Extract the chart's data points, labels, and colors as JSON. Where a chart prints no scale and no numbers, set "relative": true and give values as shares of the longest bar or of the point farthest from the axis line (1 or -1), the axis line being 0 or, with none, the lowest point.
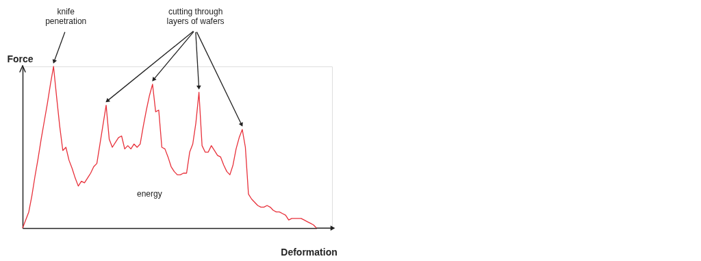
{
  "chart_data": {
    "type": "line",
    "relative": true,
    "xlabel": "Deformation",
    "ylabel": "Force",
    "categories": [
      null,
      null,
      null,
      null,
      null,
      null,
      null,
      null,
      null,
      null,
      null,
      null,
      null,
      null,
      null,
      null,
      null,
      null,
      null,
      null,
      null,
      null,
      null,
      null,
      null,
      null,
      null,
      null,
      null,
      null,
      null,
      null,
      null,
      null,
      null,
      null,
      null,
      null,
      null,
      null,
      null,
      null,
      null,
      null,
      null,
      null,
      null,
      null,
      null,
      null,
      null,
      null,
      null,
      null,
      null,
      null,
      null,
      null,
      null,
      null,
      null,
      null,
      null,
      null,
      null,
      null,
      null,
      null,
      null,
      null,
      null,
      null,
      null,
      null,
      null,
      null,
      null,
      null,
      null,
      null,
      null,
      null,
      null,
      null,
      null,
      null,
      null,
      null,
      null,
      null,
      null,
      null,
      null,
      null,
      null,
      null
    ],
    "series": [
      {
        "color": "#e8303a",
        "values": [
          0.0,
          0.05,
          0.1,
          0.2,
          0.32,
          0.43,
          0.55,
          0.66,
          0.77,
          0.89,
          1.0,
          0.81,
          0.63,
          0.48,
          0.5,
          0.42,
          0.37,
          0.31,
          0.26,
          0.29,
          0.28,
          0.31,
          0.34,
          0.38,
          0.4,
          0.52,
          0.64,
          0.76,
          0.55,
          0.5,
          0.53,
          0.56,
          0.57,
          0.49,
          0.51,
          0.49,
          0.52,
          0.5,
          0.52,
          0.63,
          0.73,
          0.82,
          0.89,
          0.72,
          0.73,
          0.5,
          0.49,
          0.44,
          0.38,
          0.35,
          0.33,
          0.33,
          0.34,
          0.34,
          0.47,
          0.52,
          0.65,
          0.84,
          0.51,
          0.47,
          0.47,
          0.51,
          0.48,
          0.45,
          0.44,
          0.39,
          0.35,
          0.33,
          0.39,
          0.49,
          0.56,
          0.61,
          0.5,
          0.21,
          0.18,
          0.16,
          0.14,
          0.13,
          0.13,
          0.14,
          0.13,
          0.11,
          0.1,
          0.1,
          0.09,
          0.08,
          0.05,
          0.06,
          0.06,
          0.06,
          0.06,
          0.05,
          0.04,
          0.03,
          0.02,
          0.0
        ]
      }
    ],
    "annotations": [
      "knife penetration",
      "cutting through layers of wafers",
      "energy"
    ]
  }
}
